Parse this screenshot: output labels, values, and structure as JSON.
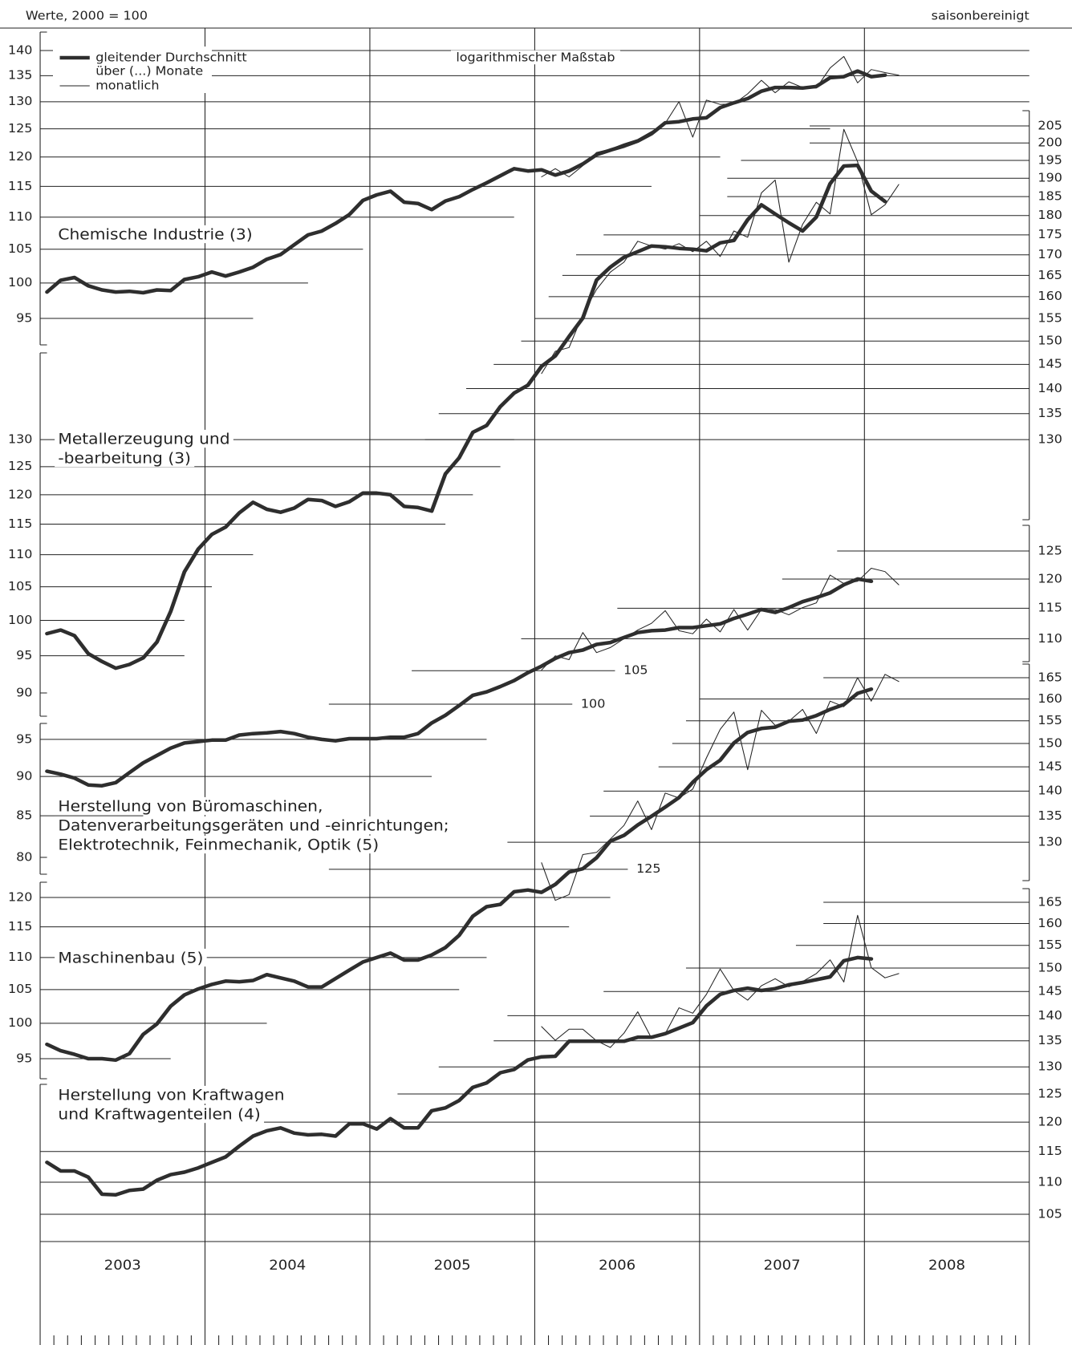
{
  "chart_data": {
    "type": "line",
    "log_scale": true,
    "grid": true,
    "unit_note": "Werte, 2000 = 100",
    "adjustment_note": "saisonbereinigt",
    "scale_note": "logarithmischer Maßstab",
    "years": [
      "2003",
      "2004",
      "2005",
      "2006",
      "2007",
      "2008"
    ],
    "series_styles": [
      {
        "name": [
          "gleitender Durchschnitt",
          "über (...) Monate"
        ],
        "color": "#2e2e2e",
        "width": 4.5
      },
      {
        "name": [
          "monatlich"
        ],
        "color": "#222222",
        "width": 1
      }
    ],
    "panels": [
      {
        "title": [
          "Chemische Industrie (3)"
        ],
        "ylim": [
          95,
          140
        ],
        "yticks": [
          95,
          100,
          105,
          110,
          115,
          120,
          125,
          130,
          135,
          140
        ],
        "series": [
          {
            "values": [
              98.7,
              100.4,
              100.8,
              99.6,
              99,
              98.7,
              98.8,
              98.6,
              99,
              98.9,
              100.5,
              100.9,
              101.6,
              101,
              101.6,
              102.3,
              103.5,
              104.2,
              105.7,
              107.2,
              107.8,
              109,
              110.4,
              112.7,
              113.6,
              114.2,
              112.4,
              112.2,
              111.2,
              112.6,
              113.3,
              114.5,
              115.6,
              116.8,
              118,
              117.6,
              117.8,
              116.9,
              117.6,
              118.8,
              120.4,
              121.2,
              121.9,
              122.8,
              124.1,
              126.1,
              126.3,
              126.8,
              127,
              128.9,
              129.8,
              130.6,
              132,
              132.7,
              132.7,
              132.6,
              132.9,
              134.6,
              134.8,
              135.9,
              134.8,
              135.1,
              null
            ]
          },
          {
            "values": [
              null,
              null,
              null,
              null,
              null,
              null,
              null,
              null,
              null,
              null,
              null,
              null,
              null,
              null,
              null,
              null,
              null,
              null,
              null,
              null,
              null,
              null,
              null,
              null,
              null,
              null,
              null,
              null,
              null,
              null,
              null,
              null,
              null,
              null,
              null,
              null,
              116.6,
              118,
              116.6,
              118.5,
              120.8,
              121.4,
              122.3,
              123.1,
              124.5,
              126,
              130,
              123.5,
              130.3,
              129.5,
              129.6,
              131.5,
              134.1,
              131.7,
              133.8,
              132.7,
              132.6,
              136.5,
              138.8,
              133.6,
              136.2,
              135.6,
              135.1
            ]
          }
        ]
      },
      {
        "title": [
          "Metallerzeugung und",
          "-bearbeitung (3)"
        ],
        "ylim": [
          90,
          205
        ],
        "yticks": [
          90,
          95,
          100,
          105,
          110,
          115,
          120,
          125,
          130
        ],
        "y2ticks": [
          130,
          135,
          140,
          145,
          150,
          155,
          160,
          165,
          170,
          175,
          180,
          185,
          190,
          195,
          200,
          205
        ],
        "series": [
          {
            "values": [
              98.1,
              98.6,
              97.8,
              95.3,
              94.2,
              93.3,
              93.8,
              94.7,
              96.9,
              101.3,
              107.3,
              110.9,
              113.3,
              114.5,
              116.9,
              118.7,
              117.5,
              117,
              117.7,
              119.2,
              119,
              118,
              118.8,
              120.3,
              120.3,
              120,
              118,
              117.8,
              117.2,
              123.7,
              126.6,
              131.4,
              132.7,
              136.4,
              139.1,
              140.7,
              144.6,
              146.8,
              151,
              155.1,
              163.9,
              167,
              169.4,
              170.8,
              172.2,
              172,
              171.6,
              171.4,
              171,
              173,
              173.6,
              178.9,
              182.8,
              180.4,
              178.1,
              176,
              179.6,
              188.5,
              193.4,
              193.6,
              186.5,
              183.7,
              null
            ]
          },
          {
            "values": [
              null,
              null,
              null,
              null,
              null,
              null,
              null,
              null,
              null,
              null,
              null,
              null,
              null,
              null,
              null,
              null,
              null,
              null,
              null,
              null,
              null,
              null,
              null,
              null,
              null,
              null,
              null,
              null,
              null,
              null,
              null,
              null,
              null,
              null,
              null,
              null,
              143.1,
              147.8,
              148.6,
              155.9,
              161.7,
              165.8,
              168.2,
              173.4,
              172.2,
              171.4,
              172.8,
              170.8,
              173.4,
              169.6,
              176,
              174.4,
              186,
              189.5,
              168.2,
              177.7,
              183.5,
              180.4,
              204,
              194.6,
              180.2,
              182.8,
              188.3
            ]
          }
        ]
      },
      {
        "title": [
          "Herstellung von Büromaschinen,",
          "Datenverarbeitungsgeräten und -einrichtungen;",
          "Elektrotechnik, Feinmechanik, Optik (5)"
        ],
        "ylim": [
          80,
          125
        ],
        "yticks": [
          80,
          85,
          90,
          95
        ],
        "inner_ticks": [
          100,
          105
        ],
        "y2ticks": [
          110,
          115,
          120,
          125
        ],
        "series": [
          {
            "values": [
              90.7,
              90.3,
              89.8,
              88.9,
              88.8,
              89.2,
              90.5,
              91.8,
              92.8,
              93.8,
              94.5,
              94.7,
              94.9,
              94.9,
              95.6,
              95.8,
              95.9,
              96.1,
              95.8,
              95.3,
              95,
              94.8,
              95.1,
              95.1,
              95.1,
              95.3,
              95.3,
              95.8,
              97.3,
              98.4,
              99.8,
              101.3,
              101.8,
              102.6,
              103.5,
              104.7,
              105.7,
              106.9,
              107.8,
              108.2,
              109.1,
              109.4,
              110.2,
              111,
              111.3,
              111.4,
              111.8,
              111.8,
              112.1,
              112.4,
              113.3,
              114,
              114.8,
              114.3,
              115.1,
              116.1,
              116.8,
              117.6,
              119,
              120,
              119.6,
              null,
              null
            ]
          },
          {
            "values": [
              null,
              null,
              null,
              null,
              null,
              null,
              null,
              null,
              null,
              null,
              null,
              null,
              null,
              null,
              null,
              null,
              null,
              null,
              null,
              null,
              null,
              null,
              null,
              null,
              null,
              null,
              null,
              null,
              null,
              null,
              null,
              null,
              null,
              null,
              null,
              null,
              105.1,
              107.3,
              106.7,
              111,
              107.8,
              108.6,
              110,
              111.4,
              112.5,
              114.6,
              111.3,
              110.8,
              113.2,
              111.1,
              114.8,
              111.4,
              114.8,
              114.8,
              113.9,
              115.1,
              115.9,
              120.7,
              119.2,
              119.6,
              121.9,
              121.3,
              119
            ]
          }
        ]
      },
      {
        "title": [
          "Maschinenbau (5)"
        ],
        "ylim": [
          95,
          165
        ],
        "yticks": [
          95,
          100,
          105,
          110,
          115,
          120
        ],
        "inner_ticks": [
          125
        ],
        "y2ticks": [
          130,
          135,
          140,
          145,
          150,
          155,
          160,
          165
        ],
        "series": [
          {
            "values": [
              97,
              96.1,
              95.6,
              95,
              95,
              94.8,
              95.7,
              98.4,
              99.9,
              102.5,
              104.2,
              105.1,
              105.8,
              106.3,
              106.2,
              106.4,
              107.3,
              106.8,
              106.3,
              105.4,
              105.4,
              106.7,
              108,
              109.3,
              110,
              110.7,
              109.6,
              109.6,
              110.4,
              111.6,
              113.6,
              116.8,
              118.4,
              118.8,
              121,
              121.3,
              120.9,
              122.3,
              124.5,
              125.1,
              127.1,
              130.2,
              131.3,
              133.3,
              135,
              136.8,
              138.7,
              141.8,
              144.4,
              146.4,
              150.1,
              152.4,
              153.3,
              153.6,
              154.9,
              155.2,
              156.2,
              157.6,
              158.7,
              161.3,
              162.3,
              null,
              null
            ]
          },
          {
            "values": [
              null,
              null,
              null,
              null,
              null,
              null,
              null,
              null,
              null,
              null,
              null,
              null,
              null,
              null,
              null,
              null,
              null,
              null,
              null,
              null,
              null,
              null,
              null,
              null,
              null,
              null,
              null,
              null,
              null,
              null,
              null,
              null,
              null,
              null,
              null,
              null,
              126.2,
              119.5,
              120.5,
              127.7,
              128.1,
              130.6,
              133.2,
              138,
              132.4,
              139.6,
              138.6,
              140.4,
              146.9,
              153.1,
              157,
              144.4,
              157.4,
              154,
              154.9,
              157.6,
              152.2,
              159.5,
              158.2,
              165,
              159.5,
              165.8,
              164.1
            ]
          }
        ]
      },
      {
        "title": [
          "Herstellung von Kraftwagen",
          "und Kraftwagenteilen (4)"
        ],
        "ylim": [
          105,
          165
        ],
        "y2ticks": [
          105,
          110,
          115,
          120,
          125,
          130,
          135,
          140,
          145,
          150,
          155,
          160,
          165
        ],
        "series": [
          {
            "values": [
              113.2,
              111.8,
              111.8,
              110.8,
              108.1,
              108,
              108.7,
              108.9,
              110.3,
              111.2,
              111.6,
              112.3,
              113.2,
              114.1,
              115.9,
              117.6,
              118.5,
              119,
              118.1,
              117.8,
              117.9,
              117.6,
              119.7,
              119.7,
              118.8,
              120.6,
              119,
              119,
              122,
              122.5,
              123.8,
              126.2,
              127,
              128.9,
              129.5,
              131.3,
              131.9,
              132,
              134.9,
              134.9,
              134.9,
              134.9,
              134.9,
              135.7,
              135.7,
              136.4,
              137.5,
              138.6,
              142,
              144.4,
              145.2,
              145.7,
              145.2,
              145.6,
              146.4,
              146.9,
              147.5,
              148.1,
              151.6,
              152.3,
              152,
              null,
              null
            ]
          },
          {
            "values": [
              null,
              null,
              null,
              null,
              null,
              null,
              null,
              null,
              null,
              null,
              null,
              null,
              null,
              null,
              null,
              null,
              null,
              null,
              null,
              null,
              null,
              null,
              null,
              null,
              null,
              null,
              null,
              null,
              null,
              null,
              null,
              null,
              null,
              null,
              null,
              null,
              137.8,
              135.1,
              137.3,
              137.3,
              135,
              133.7,
              136.5,
              140.8,
              135.5,
              136.4,
              141.6,
              140.5,
              144.4,
              149.8,
              145.2,
              143.2,
              146.2,
              147.7,
              146,
              147.1,
              148.8,
              151.8,
              147,
              161.9,
              150.1,
              147.9,
              148.8
            ]
          }
        ]
      }
    ]
  }
}
